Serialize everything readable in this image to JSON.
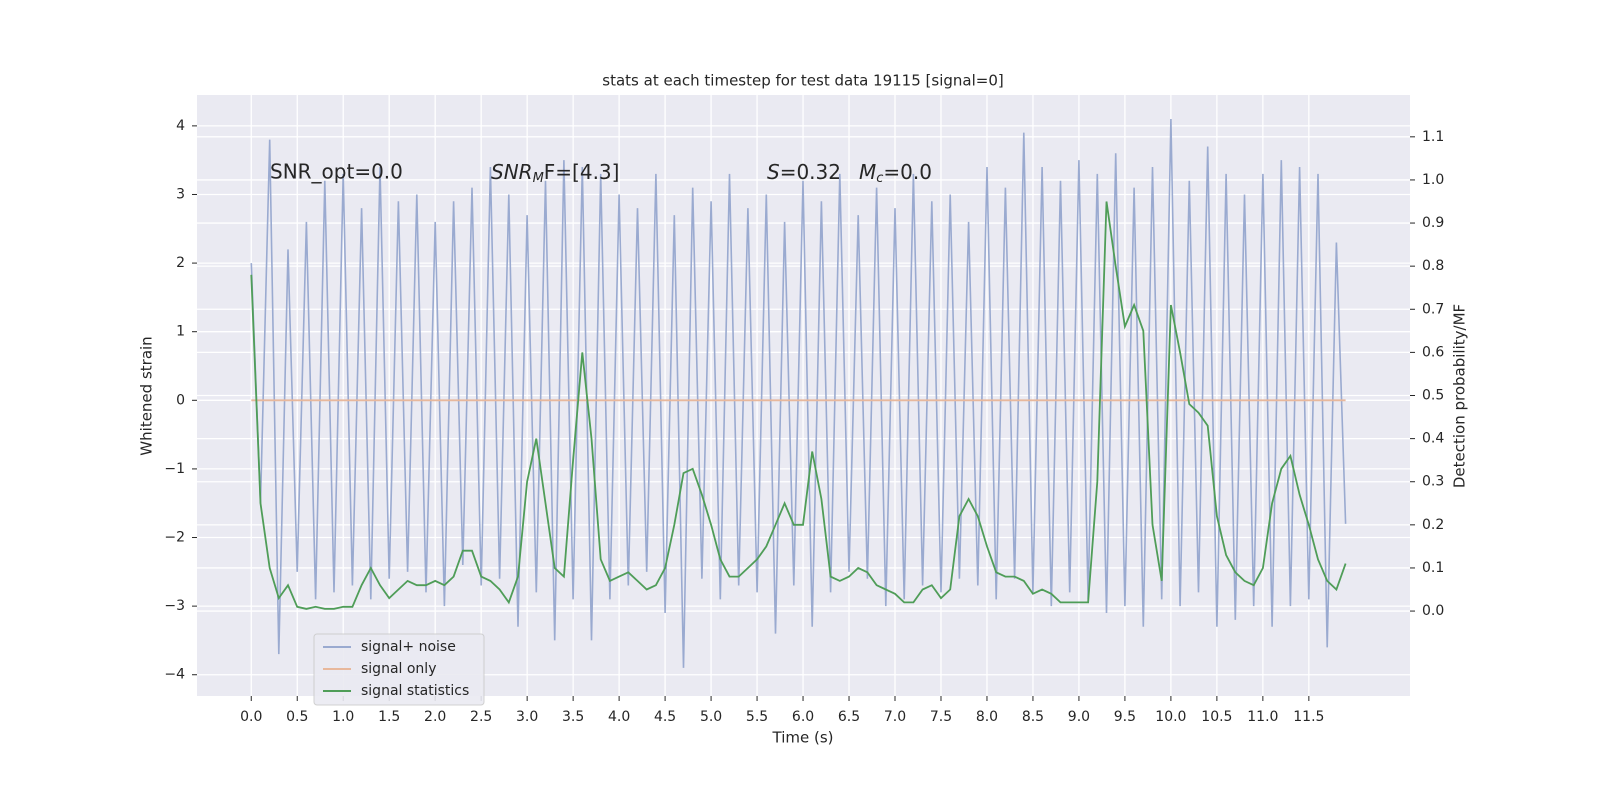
{
  "chart_data": {
    "type": "line",
    "title": "stats at each timestep for test data 19115 [signal=0]",
    "x_label": "Time (s)",
    "y_label": "Whitened strain",
    "y2_label": "Detection probability/MF",
    "annotations": [
      "SNR_opt=0.0",
      [
        "SNR",
        "M",
        "F=[4.3]"
      ],
      [
        "S",
        "",
        "=0.32"
      ],
      [
        "M",
        "c",
        "=0.0"
      ]
    ],
    "x": [
      0,
      0.1,
      0.2,
      0.3,
      0.4,
      0.5,
      0.6,
      0.7,
      0.8,
      0.9,
      1,
      1.1,
      1.2,
      1.3,
      1.4,
      1.5,
      1.6,
      1.7,
      1.8,
      1.9,
      2,
      2.1,
      2.2,
      2.3,
      2.4,
      2.5,
      2.6,
      2.7,
      2.8,
      2.9,
      3,
      3.1,
      3.2,
      3.3,
      3.4,
      3.5,
      3.6,
      3.7,
      3.8,
      3.9,
      4,
      4.1,
      4.2,
      4.3,
      4.4,
      4.5,
      4.6,
      4.7,
      4.8,
      4.9,
      5,
      5.1,
      5.2,
      5.3,
      5.4,
      5.5,
      5.6,
      5.7,
      5.8,
      5.9,
      6,
      6.1,
      6.2,
      6.3,
      6.4,
      6.5,
      6.6,
      6.7,
      6.8,
      6.9,
      7,
      7.1,
      7.2,
      7.3,
      7.4,
      7.5,
      7.6,
      7.7,
      7.8,
      7.9,
      8,
      8.1,
      8.2,
      8.3,
      8.4,
      8.5,
      8.6,
      8.7,
      8.8,
      8.9,
      9,
      9.1,
      9.2,
      9.3,
      9.4,
      9.5,
      9.6,
      9.7,
      9.8,
      9.9,
      10,
      10.1,
      10.2,
      10.3,
      10.4,
      10.5,
      10.6,
      10.7,
      10.8,
      10.9,
      11,
      11.1,
      11.2,
      11.3,
      11.4,
      11.5,
      11.6,
      11.7,
      11.8,
      11.9
    ],
    "series": [
      {
        "name": "signal+ noise",
        "color": "#9aaad0",
        "axis": "y",
        "values": [
          2.0,
          -1.5,
          3.8,
          -3.7,
          2.2,
          -2.5,
          2.6,
          -2.9,
          3.2,
          -2.8,
          3.3,
          -2.7,
          2.8,
          -2.9,
          3.4,
          -2.6,
          2.9,
          -2.5,
          3.0,
          -2.8,
          2.6,
          -3.0,
          2.9,
          -2.4,
          3.1,
          -2.7,
          3.4,
          -2.6,
          3.0,
          -3.3,
          2.7,
          -2.8,
          3.2,
          -3.5,
          3.5,
          -2.9,
          3.4,
          -3.5,
          3.3,
          -2.9,
          3.0,
          -2.7,
          2.8,
          -2.5,
          3.3,
          -3.1,
          2.7,
          -3.9,
          3.1,
          -2.6,
          2.9,
          -2.9,
          3.3,
          -2.7,
          2.8,
          -2.8,
          3.0,
          -3.4,
          2.6,
          -2.7,
          3.2,
          -3.3,
          2.9,
          -2.8,
          3.3,
          -2.5,
          2.7,
          -2.6,
          3.1,
          -3.0,
          2.8,
          -2.9,
          3.3,
          -2.7,
          2.9,
          -2.8,
          3.0,
          -2.6,
          2.6,
          -2.7,
          3.4,
          -2.9,
          3.1,
          -2.6,
          3.9,
          -2.8,
          3.4,
          -3.0,
          3.2,
          -2.8,
          3.5,
          -2.9,
          3.3,
          -3.1,
          3.6,
          -3.0,
          3.1,
          -3.3,
          3.4,
          -2.9,
          4.1,
          -3.0,
          3.2,
          -2.8,
          3.7,
          -3.3,
          3.3,
          -3.2,
          3.0,
          -3.0,
          3.3,
          -3.3,
          3.5,
          -3.0,
          3.4,
          -2.9,
          3.3,
          -3.6,
          2.3,
          -1.8
        ]
      },
      {
        "name": "signal only",
        "color": "#e8b89c",
        "axis": "y",
        "values": [
          0,
          0,
          0,
          0,
          0,
          0,
          0,
          0,
          0,
          0,
          0,
          0,
          0,
          0,
          0,
          0,
          0,
          0,
          0,
          0,
          0,
          0,
          0,
          0,
          0,
          0,
          0,
          0,
          0,
          0,
          0,
          0,
          0,
          0,
          0,
          0,
          0,
          0,
          0,
          0,
          0,
          0,
          0,
          0,
          0,
          0,
          0,
          0,
          0,
          0,
          0,
          0,
          0,
          0,
          0,
          0,
          0,
          0,
          0,
          0,
          0,
          0,
          0,
          0,
          0,
          0,
          0,
          0,
          0,
          0,
          0,
          0,
          0,
          0,
          0,
          0,
          0,
          0,
          0,
          0,
          0,
          0,
          0,
          0,
          0,
          0,
          0,
          0,
          0,
          0,
          0,
          0,
          0,
          0,
          0,
          0,
          0,
          0,
          0,
          0,
          0,
          0,
          0,
          0,
          0,
          0,
          0,
          0,
          0,
          0,
          0,
          0,
          0,
          0,
          0,
          0,
          0,
          0,
          0,
          0
        ]
      },
      {
        "name": "signal statistics",
        "color": "#4f9d58",
        "axis": "y2",
        "values": [
          0.78,
          0.25,
          0.1,
          0.03,
          0.06,
          0.01,
          0.005,
          0.01,
          0.005,
          0.005,
          0.01,
          0.01,
          0.06,
          0.1,
          0.06,
          0.03,
          0.05,
          0.07,
          0.06,
          0.06,
          0.07,
          0.06,
          0.08,
          0.14,
          0.14,
          0.08,
          0.07,
          0.05,
          0.02,
          0.08,
          0.3,
          0.4,
          0.25,
          0.1,
          0.08,
          0.35,
          0.6,
          0.4,
          0.12,
          0.07,
          0.08,
          0.09,
          0.07,
          0.05,
          0.06,
          0.1,
          0.2,
          0.32,
          0.33,
          0.27,
          0.2,
          0.12,
          0.08,
          0.08,
          0.1,
          0.12,
          0.15,
          0.2,
          0.25,
          0.2,
          0.2,
          0.37,
          0.26,
          0.08,
          0.07,
          0.08,
          0.1,
          0.09,
          0.06,
          0.05,
          0.04,
          0.02,
          0.02,
          0.05,
          0.06,
          0.03,
          0.05,
          0.22,
          0.26,
          0.22,
          0.15,
          0.09,
          0.08,
          0.08,
          0.07,
          0.04,
          0.05,
          0.04,
          0.02,
          0.02,
          0.02,
          0.02,
          0.3,
          0.95,
          0.8,
          0.66,
          0.71,
          0.65,
          0.2,
          0.07,
          0.71,
          0.6,
          0.48,
          0.46,
          0.43,
          0.22,
          0.13,
          0.09,
          0.07,
          0.06,
          0.1,
          0.25,
          0.33,
          0.36,
          0.27,
          0.2,
          0.12,
          0.07,
          0.05,
          0.11
        ]
      }
    ],
    "xlim": [
      -0.59,
      12.6
    ],
    "ylim": [
      -4.31,
      4.45
    ],
    "y2lim": [
      -0.197,
      1.197
    ],
    "xticks": [
      {
        "value": 0,
        "label": "0.0"
      },
      0.5,
      {
        "value": 1,
        "label": "1.0"
      },
      1.5,
      {
        "value": 2,
        "label": "2.0"
      },
      2.5,
      {
        "value": 3,
        "label": "3.0"
      },
      3.5,
      {
        "value": 4,
        "label": "4.0"
      },
      4.5,
      {
        "value": 5,
        "label": "5.0"
      },
      5.5,
      {
        "value": 6,
        "label": "6.0"
      },
      6.5,
      {
        "value": 7,
        "label": "7.0"
      },
      7.5,
      {
        "value": 8,
        "label": "8.0"
      },
      8.5,
      {
        "value": 9,
        "label": "9.0"
      },
      9.5,
      {
        "value": 10,
        "label": "10.0"
      },
      10.5,
      {
        "value": 11,
        "label": "11.0"
      },
      11.5
    ],
    "yticks": [
      {
        "value": -4,
        "label": "−4"
      },
      {
        "value": -3,
        "label": "−3"
      },
      {
        "value": -2,
        "label": "−2"
      },
      {
        "value": -1,
        "label": "−1"
      },
      0,
      1,
      2,
      3,
      4
    ],
    "y2ticks": [
      {
        "value": 0,
        "label": "0.0"
      },
      0.1,
      0.2,
      0.3,
      0.4,
      0.5,
      0.6,
      0.7,
      0.8,
      0.9,
      {
        "value": 1,
        "label": "1.0"
      },
      1.1
    ],
    "grid": true,
    "legend": "lower left"
  }
}
